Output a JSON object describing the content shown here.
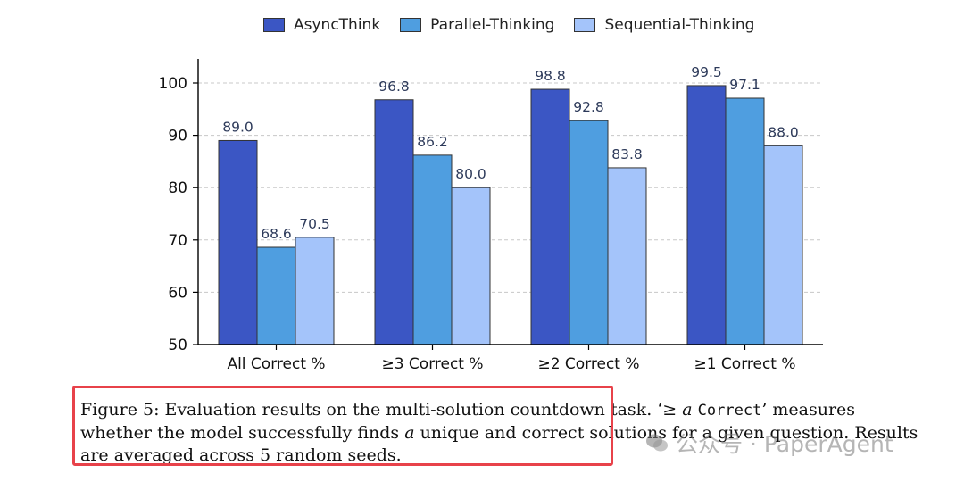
{
  "chart_data": {
    "type": "bar",
    "categories": [
      "All Correct %",
      "≥3 Correct %",
      "≥2 Correct %",
      "≥1 Correct %"
    ],
    "series": [
      {
        "name": "AsyncThink",
        "values": [
          89.0,
          96.8,
          98.8,
          99.5
        ],
        "color": "#3b56c4"
      },
      {
        "name": "Parallel-Thinking",
        "values": [
          68.6,
          86.2,
          92.8,
          97.1
        ],
        "color": "#4f9ee0"
      },
      {
        "name": "Sequential-Thinking",
        "values": [
          70.5,
          80.0,
          83.8,
          88.0
        ],
        "color": "#a4c4fa"
      }
    ],
    "ylim": [
      50,
      105
    ],
    "yticks": [
      50,
      60,
      70,
      80,
      90,
      100
    ],
    "grid": "horizontal dashed",
    "legend_position": "top-center",
    "title": "",
    "xlabel": "",
    "ylabel": ""
  },
  "caption": {
    "part1": "Figure 5: Evaluation results on the multi-solution countdown task. ‘≥ ",
    "var_a": "a",
    "code": "Correct",
    "part2": "’ measures whether the model successfully finds ",
    "var_a2": "a",
    "part3": " unique and correct solutions for a given question. Results are averaged across 5 random seeds."
  },
  "watermark": {
    "text": "公众号 · PaperAgent",
    "icon": "wechat-icon"
  }
}
